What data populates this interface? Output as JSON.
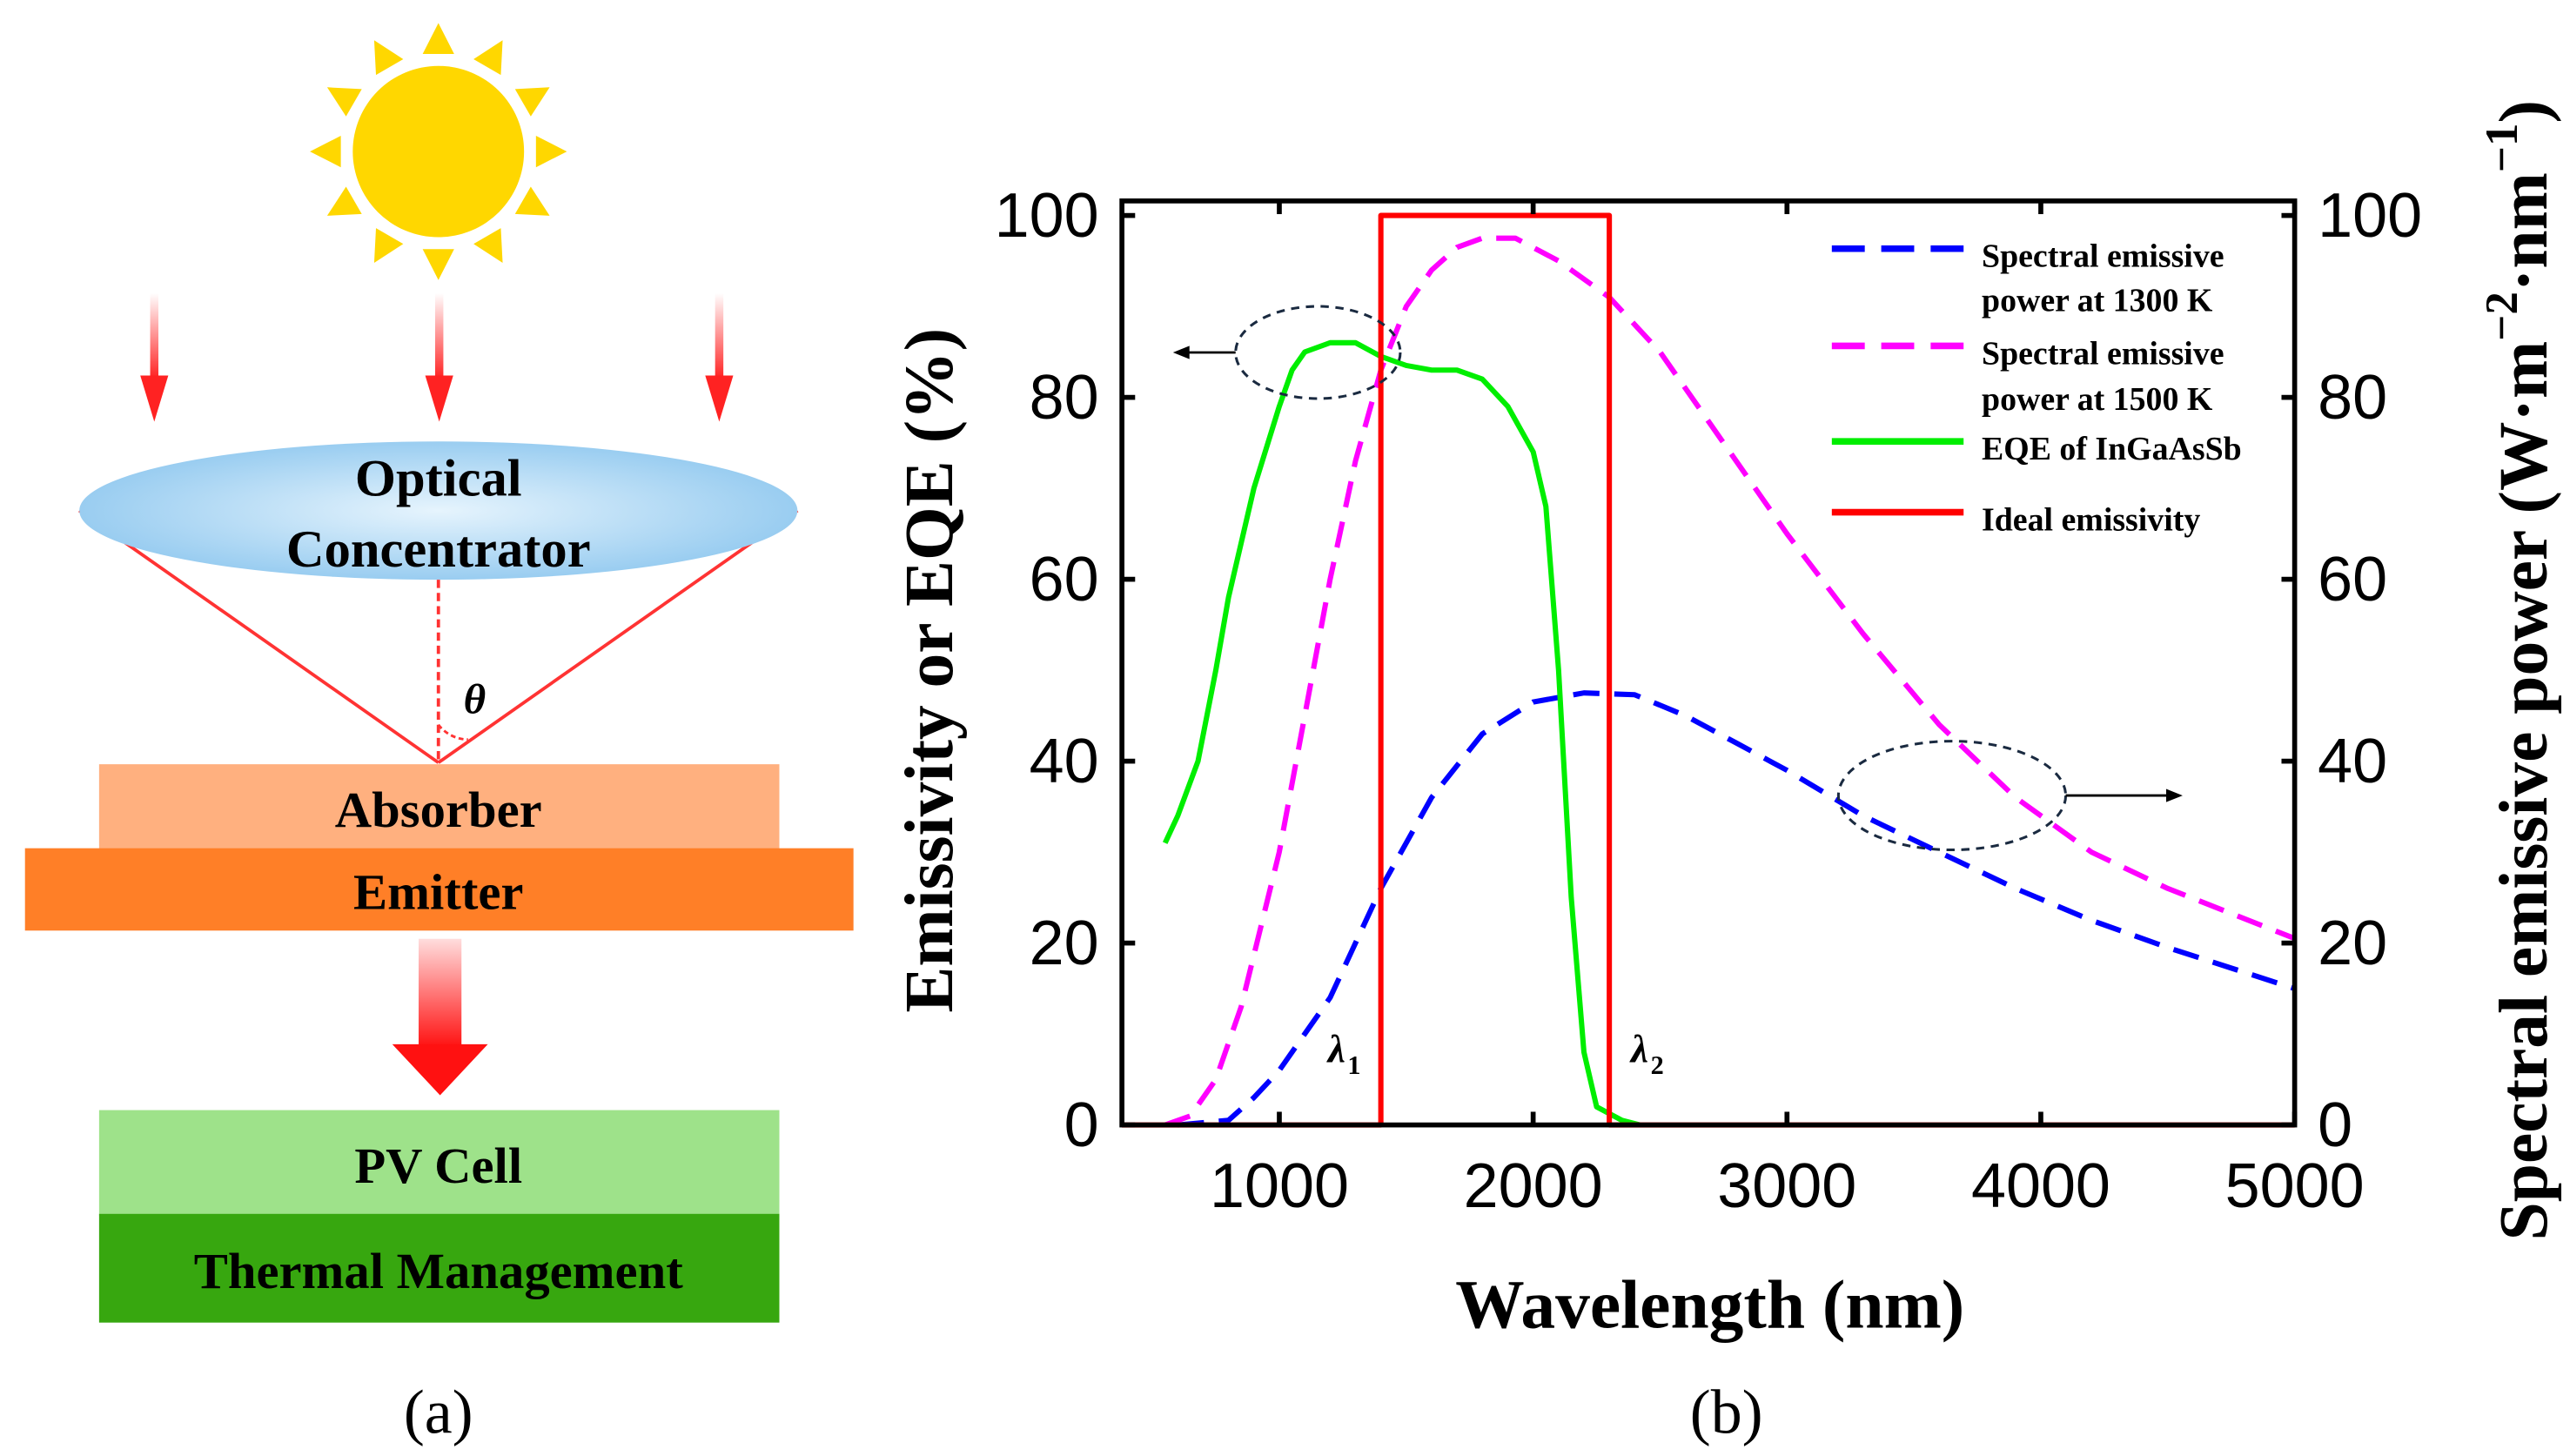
{
  "panel_a": {
    "caption": "(a)",
    "concentrator_line1": "Optical",
    "concentrator_line2": "Concentrator",
    "angle_label": "θ",
    "absorber": "Absorber",
    "emitter": "Emitter",
    "pv_cell": "PV Cell",
    "thermal": "Thermal Management",
    "colors": {
      "sun": "#FFD700",
      "absorber": "#FFB07F",
      "emitter": "#FF7F27",
      "pv": "#9EE28A",
      "thermal": "#37A70F",
      "arrow": "#F22"
    }
  },
  "panel_b": {
    "caption": "(b)"
  },
  "chart_data": {
    "type": "line",
    "xlabel": "Wavelength (nm)",
    "ylabel": "Emissivity or EQE (%)",
    "ylabel_right_parts": [
      "Spectral emissive power (W·m",
      "−2",
      "·nm",
      "−1",
      ")"
    ],
    "xlim": [
      380,
      5000
    ],
    "ylim": [
      0,
      101.6
    ],
    "ylim_right": [
      0,
      101.6
    ],
    "xticks": [
      1000,
      2000,
      3000,
      4000,
      5000
    ],
    "yticks": [
      0,
      20,
      40,
      60,
      80,
      100
    ],
    "yticks_right": [
      0,
      20,
      40,
      60,
      80,
      100
    ],
    "grid": false,
    "legend_position": "top-right",
    "annotations": {
      "lambda1": "λ",
      "lambda1_sub": "1",
      "lambda2": "λ",
      "lambda2_sub": "2"
    },
    "series": [
      {
        "name": "Spectral emissive power at 1300 K",
        "name_line1": "Spectral emissive",
        "name_line2": "power at 1300 K",
        "axis": "right",
        "color": "#0000FF",
        "style": "dashed",
        "x": [
          600,
          800,
          900,
          1000,
          1200,
          1400,
          1600,
          1800,
          2000,
          2200,
          2400,
          2600,
          2800,
          3000,
          3300,
          3600,
          3900,
          4200,
          4500,
          5000
        ],
        "y": [
          0,
          0.5,
          3,
          6,
          14,
          26,
          36,
          43,
          46.5,
          47.5,
          47.3,
          45,
          42,
          39,
          34,
          30,
          26,
          22.5,
          19.5,
          15
        ]
      },
      {
        "name": "Spectral emissive power at 1500 K",
        "name_line1": "Spectral emissive",
        "name_line2": "power at 1500 K",
        "axis": "right",
        "color": "#FF00FF",
        "style": "dashed",
        "x": [
          550,
          650,
          750,
          850,
          1000,
          1100,
          1200,
          1300,
          1400,
          1500,
          1600,
          1700,
          1800,
          1930,
          2100,
          2300,
          2500,
          2700,
          3000,
          3300,
          3600,
          3900,
          4200,
          4500,
          5000
        ],
        "y": [
          0,
          1,
          5,
          13,
          30,
          45,
          60,
          73,
          83,
          90,
          94,
          96.5,
          97.5,
          97.5,
          95,
          91,
          85,
          77,
          65,
          54,
          44,
          36,
          30,
          26,
          20.5
        ]
      },
      {
        "name": "EQE of InGaAsSb",
        "name_line1": "EQE of InGaAsSb",
        "axis": "left",
        "color": "#00EE00",
        "style": "solid",
        "x": [
          550,
          600,
          680,
          750,
          800,
          900,
          1000,
          1050,
          1100,
          1200,
          1300,
          1400,
          1500,
          1600,
          1700,
          1800,
          1900,
          2000,
          2050,
          2100,
          2150,
          2200,
          2250,
          2350,
          2420
        ],
        "y": [
          31,
          34,
          40,
          50,
          58,
          70,
          79,
          83,
          85,
          86,
          86,
          84.5,
          83.5,
          83,
          83,
          82,
          79,
          74,
          68,
          50,
          25,
          8,
          2,
          0.5,
          0
        ]
      },
      {
        "name": "Ideal emissivity",
        "name_line1": "Ideal emissivity",
        "axis": "left",
        "color": "#FF0000",
        "style": "solid",
        "x": [
          380,
          1400,
          1400,
          2300,
          2300,
          5000
        ],
        "y": [
          0,
          0,
          100,
          100,
          0,
          0
        ]
      }
    ]
  }
}
